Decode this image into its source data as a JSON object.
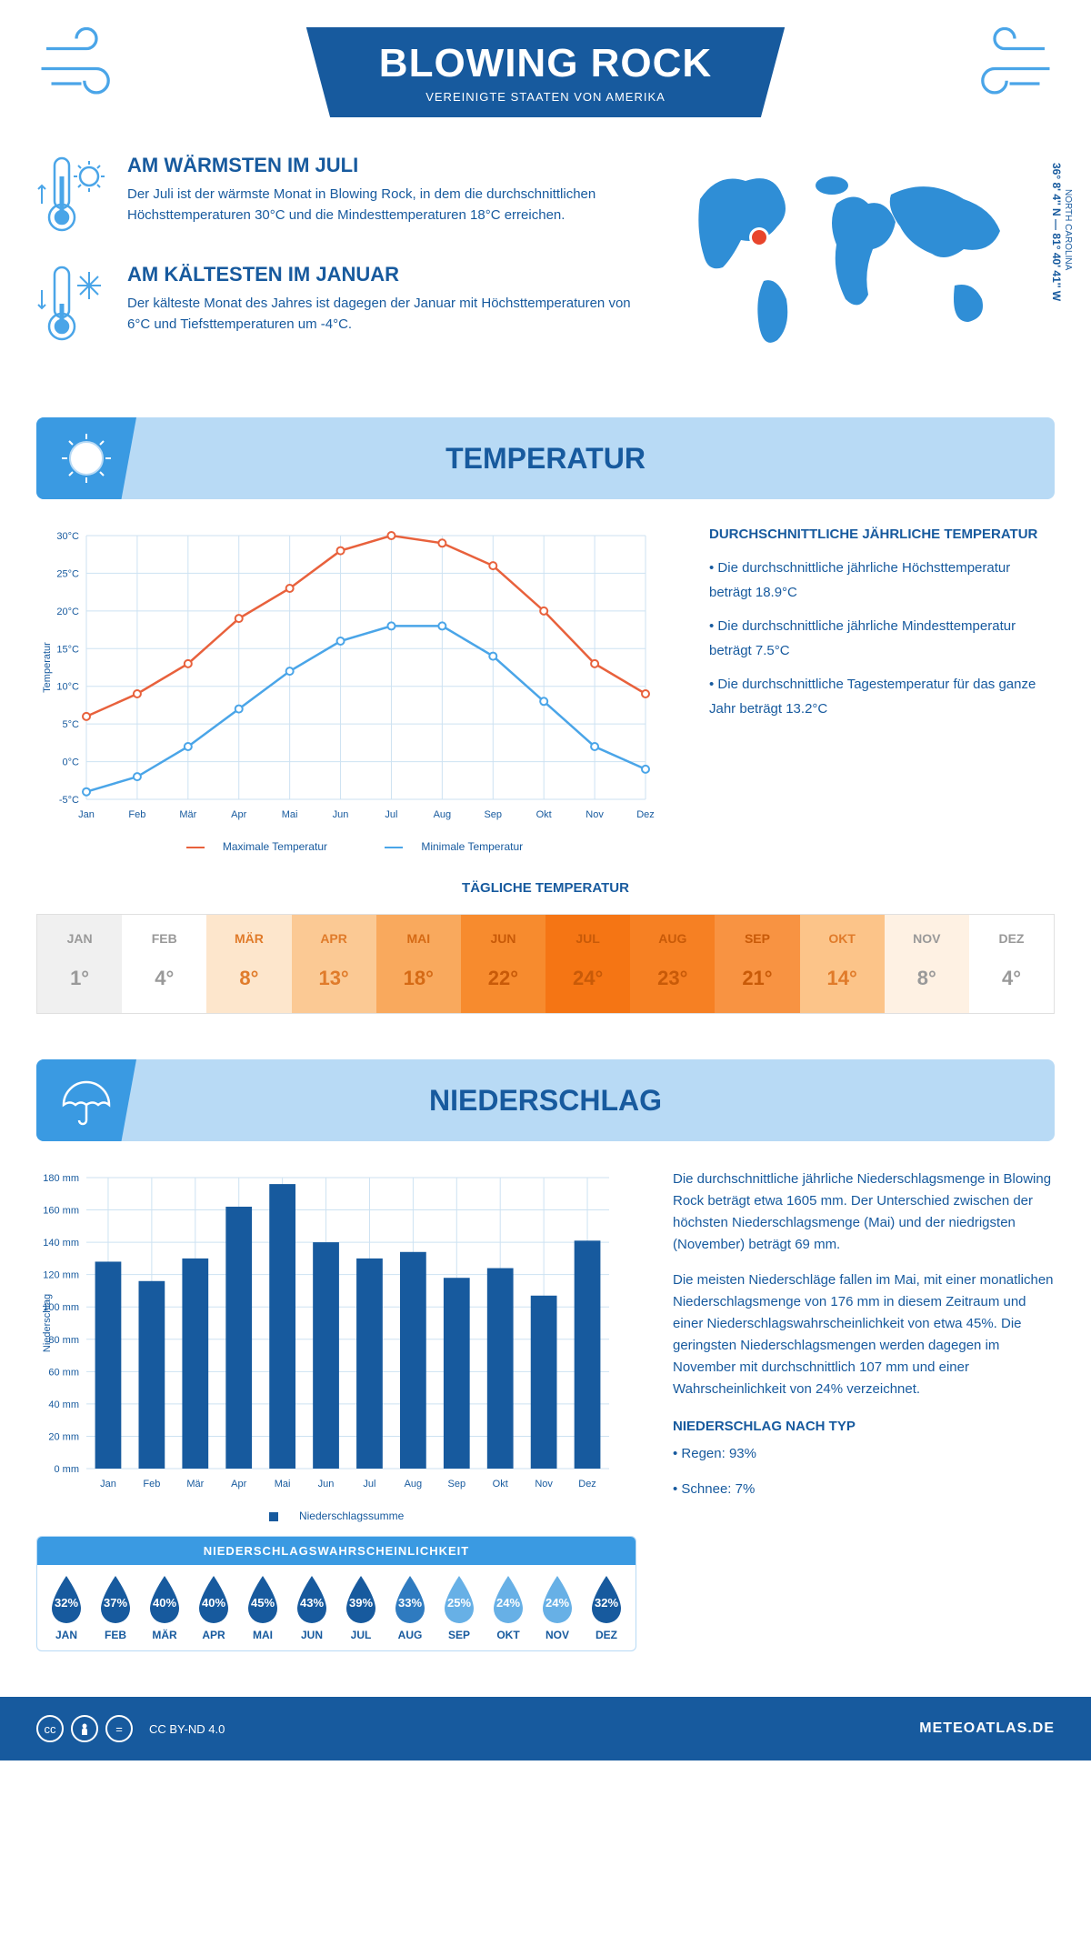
{
  "header": {
    "title": "BLOWING ROCK",
    "subtitle": "VEREINIGTE STAATEN VON AMERIKA"
  },
  "coords": {
    "lat": "36° 8' 4'' N — 81° 40' 41'' W",
    "region": "NORTH CAROLINA"
  },
  "warmest": {
    "title": "AM WÄRMSTEN IM JULI",
    "text": "Der Juli ist der wärmste Monat in Blowing Rock, in dem die durchschnittlichen Höchsttemperaturen 30°C und die Mindesttemperaturen 18°C erreichen."
  },
  "coldest": {
    "title": "AM KÄLTESTEN IM JANUAR",
    "text": "Der kälteste Monat des Jahres ist dagegen der Januar mit Höchsttemperaturen von 6°C und Tiefsttemperaturen um -4°C."
  },
  "temp_section": {
    "title": "TEMPERATUR",
    "side_title": "DURCHSCHNITTLICHE JÄHRLICHE TEMPERATUR",
    "bullets": [
      "• Die durchschnittliche jährliche Höchsttemperatur beträgt 18.9°C",
      "• Die durchschnittliche jährliche Mindesttemperatur beträgt 7.5°C",
      "• Die durchschnittliche Tagestemperatur für das ganze Jahr beträgt 13.2°C"
    ],
    "chart": {
      "months": [
        "Jan",
        "Feb",
        "Mär",
        "Apr",
        "Mai",
        "Jun",
        "Jul",
        "Aug",
        "Sep",
        "Okt",
        "Nov",
        "Dez"
      ],
      "max": [
        6,
        9,
        13,
        19,
        23,
        28,
        30,
        29,
        26,
        20,
        13,
        9
      ],
      "min": [
        -4,
        -2,
        2,
        7,
        12,
        16,
        18,
        18,
        14,
        8,
        2,
        -1
      ],
      "max_color": "#e8613c",
      "min_color": "#4aa5e8",
      "ylim": [
        -5,
        30
      ],
      "yticks": [
        -5,
        0,
        5,
        10,
        15,
        20,
        25,
        30
      ],
      "ylabel": "Temperatur",
      "legend_max": "Maximale Temperatur",
      "legend_min": "Minimale Temperatur",
      "grid_color": "#cde2f2",
      "bg": "#ffffff"
    },
    "daily_title": "TÄGLICHE TEMPERATUR",
    "daily": {
      "months": [
        "JAN",
        "FEB",
        "MÄR",
        "APR",
        "MAI",
        "JUN",
        "JUL",
        "AUG",
        "SEP",
        "OKT",
        "NOV",
        "DEZ"
      ],
      "values": [
        1,
        4,
        8,
        13,
        18,
        22,
        24,
        23,
        21,
        14,
        8,
        4
      ],
      "colors": [
        "#f0f0f0",
        "#ffffff",
        "#fde6cc",
        "#fbc994",
        "#f9a95d",
        "#f78b2e",
        "#f57514",
        "#f68023",
        "#f89342",
        "#fcc489",
        "#fef1e3",
        "#ffffff"
      ],
      "text_colors": [
        "#999",
        "#999",
        "#e07b2a",
        "#e07b2a",
        "#d56a15",
        "#c85a08",
        "#c85a08",
        "#c85a08",
        "#c85a08",
        "#e07b2a",
        "#999",
        "#999"
      ]
    }
  },
  "precip_section": {
    "title": "NIEDERSCHLAG",
    "text1": "Die durchschnittliche jährliche Niederschlagsmenge in Blowing Rock beträgt etwa 1605 mm. Der Unterschied zwischen der höchsten Niederschlagsmenge (Mai) und der niedrigsten (November) beträgt 69 mm.",
    "text2": "Die meisten Niederschläge fallen im Mai, mit einer monatlichen Niederschlagsmenge von 176 mm in diesem Zeitraum und einer Niederschlagswahrscheinlichkeit von etwa 45%. Die geringsten Niederschlagsmengen werden dagegen im November mit durchschnittlich 107 mm und einer Wahrscheinlichkeit von 24% verzeichnet.",
    "by_type_title": "NIEDERSCHLAG NACH TYP",
    "by_type": [
      "• Regen: 93%",
      "• Schnee: 7%"
    ],
    "chart": {
      "months": [
        "Jan",
        "Feb",
        "Mär",
        "Apr",
        "Mai",
        "Jun",
        "Jul",
        "Aug",
        "Sep",
        "Okt",
        "Nov",
        "Dez"
      ],
      "values": [
        128,
        116,
        130,
        162,
        176,
        140,
        130,
        134,
        118,
        124,
        107,
        141
      ],
      "bar_color": "#175a9e",
      "ylim": [
        0,
        180
      ],
      "yticks": [
        0,
        20,
        40,
        60,
        80,
        100,
        120,
        140,
        160,
        180
      ],
      "ylabel": "Niederschlag",
      "legend": "Niederschlagssumme",
      "grid_color": "#cde2f2"
    },
    "prob": {
      "title": "NIEDERSCHLAGSWAHRSCHEINLICHKEIT",
      "months": [
        "JAN",
        "FEB",
        "MÄR",
        "APR",
        "MAI",
        "JUN",
        "JUL",
        "AUG",
        "SEP",
        "OKT",
        "NOV",
        "DEZ"
      ],
      "values": [
        32,
        37,
        40,
        40,
        45,
        43,
        39,
        33,
        25,
        24,
        24,
        32
      ],
      "colors": [
        "#175a9e",
        "#175a9e",
        "#175a9e",
        "#175a9e",
        "#175a9e",
        "#175a9e",
        "#175a9e",
        "#2f7bc0",
        "#67b0e6",
        "#67b0e6",
        "#67b0e6",
        "#175a9e"
      ]
    }
  },
  "footer": {
    "license": "CC BY-ND 4.0",
    "site": "METEOATLAS.DE"
  }
}
